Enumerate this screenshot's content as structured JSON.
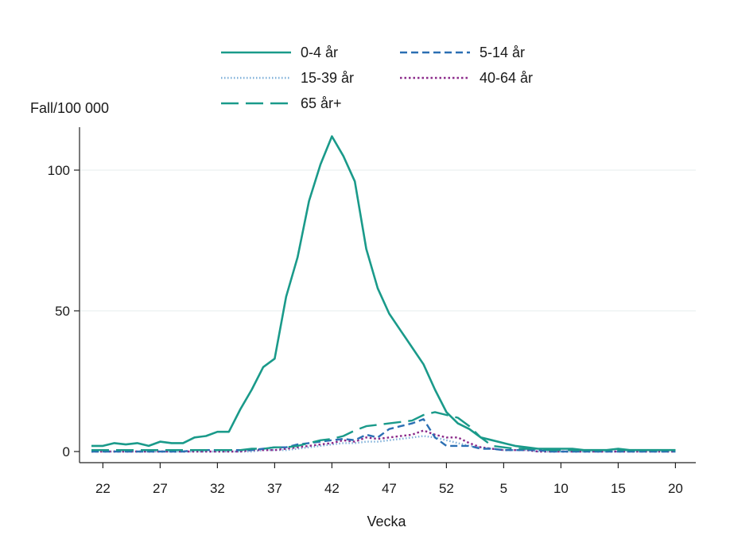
{
  "chart_data": {
    "type": "line",
    "title": "",
    "xlabel": "Vecka",
    "ylabel": "Fall/100 000",
    "ylim": [
      0,
      115
    ],
    "yticks": [
      0,
      50,
      100
    ],
    "x": [
      21,
      22,
      23,
      24,
      25,
      26,
      27,
      28,
      29,
      30,
      31,
      32,
      33,
      34,
      35,
      36,
      37,
      38,
      39,
      40,
      41,
      42,
      43,
      44,
      45,
      46,
      47,
      48,
      49,
      50,
      51,
      52,
      1,
      2,
      3,
      4,
      5,
      6,
      7,
      8,
      9,
      10,
      11,
      12,
      13,
      14,
      15,
      16,
      17,
      18,
      19,
      20
    ],
    "xtick_labels": [
      "22",
      "27",
      "32",
      "37",
      "42",
      "47",
      "52",
      "5",
      "10",
      "15",
      "20"
    ],
    "xtick_values": [
      22,
      27,
      32,
      37,
      42,
      47,
      52,
      5,
      10,
      15,
      20
    ],
    "grid": true,
    "legend": "top",
    "series": [
      {
        "name": "0-4 år",
        "style": "solid",
        "color": "#1a9a8a",
        "values": [
          2,
          2,
          3,
          2.5,
          3,
          2,
          3.5,
          3,
          3,
          5,
          5.5,
          7,
          7,
          15,
          22,
          30,
          33,
          55,
          69,
          89,
          102,
          112,
          105,
          96,
          72,
          58,
          49,
          43,
          37,
          31,
          22,
          14,
          10,
          8,
          5,
          4,
          3,
          2,
          1.5,
          1,
          1,
          1,
          1,
          0.5,
          0.5,
          0.5,
          1,
          0.5,
          0.5,
          0.5,
          0.5,
          0.5
        ]
      },
      {
        "name": "5-14 år",
        "style": "dash",
        "color": "#2b6fb3",
        "values": [
          0,
          0,
          0,
          0,
          0,
          0,
          0,
          0,
          0,
          0.5,
          0.5,
          0.5,
          0.5,
          0.5,
          0.5,
          1,
          1.5,
          1.5,
          2.5,
          3,
          3.5,
          4,
          4.5,
          4,
          6,
          5,
          8,
          9,
          10,
          11.5,
          5,
          2,
          2,
          2,
          1,
          1,
          0.5,
          0.5,
          0.5,
          0.5,
          0,
          0,
          0,
          0,
          0,
          0,
          0,
          0,
          0,
          0,
          0,
          0
        ]
      },
      {
        "name": "15-39 år",
        "style": "dot-fine",
        "color": "#7fb0d9",
        "values": [
          0,
          0,
          0,
          0,
          0,
          0,
          0,
          0,
          0,
          0,
          0,
          0,
          0,
          0,
          0,
          0.5,
          0.5,
          0.5,
          1,
          1.5,
          2,
          2.5,
          3,
          3,
          3.5,
          3.5,
          4,
          4.5,
          5,
          5.5,
          5,
          4,
          3,
          2,
          1.5,
          1,
          0.5,
          0.5,
          0.5,
          0,
          0,
          0,
          0,
          0,
          0,
          0,
          0,
          0,
          0,
          0,
          0,
          0
        ]
      },
      {
        "name": "40-64 år",
        "style": "dot",
        "color": "#8b2a8a",
        "values": [
          0,
          0,
          0,
          0,
          0,
          0,
          0,
          0,
          0,
          0,
          0,
          0,
          0,
          0,
          0.5,
          0.5,
          0.5,
          1,
          1.5,
          2,
          2.5,
          3,
          4,
          3.5,
          5,
          4.5,
          5,
          5.5,
          6,
          7.5,
          6,
          5,
          5,
          3,
          1.5,
          1,
          0.5,
          0.5,
          0.5,
          0,
          0,
          0,
          0,
          0,
          0,
          0,
          0,
          0,
          0,
          0,
          0,
          0
        ]
      },
      {
        "name": "65 år+",
        "style": "longdash",
        "color": "#1a9a8a",
        "values": [
          0.5,
          0.5,
          0.5,
          0.5,
          0.5,
          0.5,
          0.5,
          0.5,
          0.5,
          0.5,
          0.5,
          0.5,
          0.5,
          0.5,
          1,
          1,
          1.5,
          1.5,
          2,
          3,
          4,
          4.5,
          5.5,
          7.5,
          9,
          9.5,
          10,
          10.5,
          11,
          13,
          14,
          13,
          12,
          9,
          5,
          2,
          1.5,
          1,
          1,
          1,
          0.5,
          0.5,
          0.5,
          0.5,
          0.5,
          0.5,
          0.5,
          0.5,
          0.5,
          0.5,
          0.5,
          0.5
        ]
      }
    ]
  }
}
